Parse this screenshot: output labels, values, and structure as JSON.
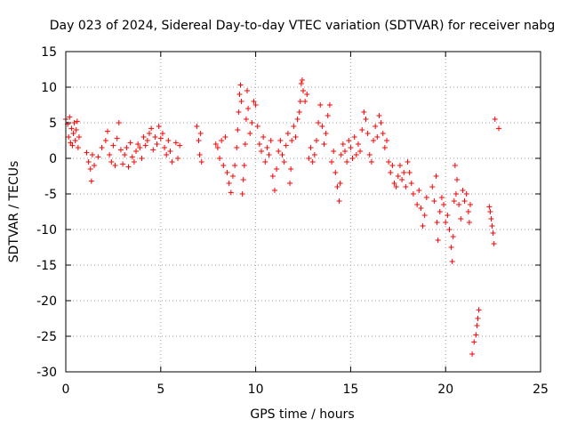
{
  "chart_data": {
    "type": "scatter",
    "title": "Day 023 of 2024, Sidereal Day-to-day VTEC variation (SDTVAR) for receiver nabg",
    "xlabel": "GPS time / hours",
    "ylabel": "SDTVAR / TECUs",
    "xlim": [
      0,
      25
    ],
    "ylim": [
      -30,
      15
    ],
    "xticks": [
      0,
      5,
      10,
      15,
      20,
      25
    ],
    "yticks": [
      15,
      10,
      5,
      0,
      -5,
      -10,
      -15,
      -20,
      -25,
      -30
    ],
    "xtick_labels": [
      "0",
      "5",
      "10",
      "15",
      "20",
      "25"
    ],
    "ytick_labels": [
      "15",
      "10",
      "5",
      "0",
      "-5",
      "-10",
      "-15",
      "-20",
      "-25",
      "-30"
    ],
    "grid": true,
    "marker": "plus",
    "color": "#ff0000",
    "series": [
      {
        "name": "SDTVAR",
        "points": [
          [
            0.0,
            5.5
          ],
          [
            0.1,
            4.8
          ],
          [
            0.15,
            3.0
          ],
          [
            0.2,
            5.8
          ],
          [
            0.25,
            2.2
          ],
          [
            0.3,
            4.2
          ],
          [
            0.35,
            1.8
          ],
          [
            0.4,
            3.5
          ],
          [
            0.45,
            5.0
          ],
          [
            0.5,
            2.5
          ],
          [
            0.55,
            4.0
          ],
          [
            0.6,
            5.2
          ],
          [
            0.65,
            1.5
          ],
          [
            0.7,
            3.0
          ],
          [
            1.1,
            0.8
          ],
          [
            1.2,
            -0.5
          ],
          [
            1.3,
            -1.5
          ],
          [
            1.35,
            -3.2
          ],
          [
            1.4,
            0.5
          ],
          [
            1.5,
            -1.0
          ],
          [
            1.7,
            0.2
          ],
          [
            1.9,
            1.5
          ],
          [
            2.1,
            2.5
          ],
          [
            2.2,
            3.8
          ],
          [
            2.3,
            0.5
          ],
          [
            2.4,
            -0.5
          ],
          [
            2.5,
            1.8
          ],
          [
            2.6,
            -1.0
          ],
          [
            2.7,
            2.8
          ],
          [
            2.8,
            5.0
          ],
          [
            2.9,
            1.2
          ],
          [
            3.0,
            -0.8
          ],
          [
            3.1,
            0.5
          ],
          [
            3.2,
            1.5
          ],
          [
            3.3,
            -1.2
          ],
          [
            3.4,
            2.2
          ],
          [
            3.5,
            0.2
          ],
          [
            3.6,
            -0.5
          ],
          [
            3.7,
            1.0
          ],
          [
            3.8,
            2.0
          ],
          [
            3.9,
            1.5
          ],
          [
            4.0,
            0.0
          ],
          [
            4.1,
            3.0
          ],
          [
            4.2,
            1.8
          ],
          [
            4.3,
            2.5
          ],
          [
            4.4,
            3.5
          ],
          [
            4.5,
            4.2
          ],
          [
            4.6,
            1.2
          ],
          [
            4.7,
            3.0
          ],
          [
            4.8,
            2.0
          ],
          [
            4.9,
            4.5
          ],
          [
            5.0,
            2.8
          ],
          [
            5.1,
            3.5
          ],
          [
            5.2,
            1.5
          ],
          [
            5.3,
            0.5
          ],
          [
            5.4,
            2.5
          ],
          [
            5.5,
            1.0
          ],
          [
            5.6,
            -0.5
          ],
          [
            5.8,
            2.2
          ],
          [
            5.9,
            0.0
          ],
          [
            6.0,
            1.8
          ],
          [
            6.9,
            4.5
          ],
          [
            7.0,
            2.5
          ],
          [
            7.05,
            0.5
          ],
          [
            7.1,
            3.5
          ],
          [
            7.15,
            -0.5
          ],
          [
            7.9,
            2.0
          ],
          [
            8.0,
            1.5
          ],
          [
            8.1,
            0.0
          ],
          [
            8.2,
            2.5
          ],
          [
            8.3,
            -1.0
          ],
          [
            8.4,
            3.0
          ],
          [
            8.5,
            -2.0
          ],
          [
            8.6,
            -3.5
          ],
          [
            8.7,
            -4.8
          ],
          [
            8.8,
            -2.5
          ],
          [
            8.9,
            -1.0
          ],
          [
            9.0,
            1.5
          ],
          [
            9.05,
            4.0
          ],
          [
            9.1,
            6.5
          ],
          [
            9.15,
            9.0
          ],
          [
            9.2,
            10.3
          ],
          [
            9.25,
            8.0
          ],
          [
            9.3,
            -5.0
          ],
          [
            9.35,
            -3.0
          ],
          [
            9.4,
            -1.0
          ],
          [
            9.45,
            2.0
          ],
          [
            9.5,
            5.5
          ],
          [
            9.55,
            9.5
          ],
          [
            9.6,
            7.0
          ],
          [
            9.7,
            3.5
          ],
          [
            9.8,
            5.0
          ],
          [
            9.9,
            8.0
          ],
          [
            10.0,
            7.5
          ],
          [
            10.1,
            4.5
          ],
          [
            10.2,
            2.0
          ],
          [
            10.3,
            1.0
          ],
          [
            10.4,
            3.0
          ],
          [
            10.5,
            -0.5
          ],
          [
            10.6,
            1.5
          ],
          [
            10.7,
            0.5
          ],
          [
            10.8,
            2.5
          ],
          [
            10.9,
            -2.5
          ],
          [
            11.0,
            -4.5
          ],
          [
            11.1,
            -1.5
          ],
          [
            11.2,
            1.0
          ],
          [
            11.3,
            2.5
          ],
          [
            11.4,
            0.5
          ],
          [
            11.5,
            -0.5
          ],
          [
            11.6,
            1.8
          ],
          [
            11.7,
            3.5
          ],
          [
            11.8,
            -3.5
          ],
          [
            11.85,
            -1.5
          ],
          [
            11.9,
            2.5
          ],
          [
            12.0,
            4.5
          ],
          [
            12.1,
            3.0
          ],
          [
            12.2,
            5.5
          ],
          [
            12.3,
            6.5
          ],
          [
            12.35,
            8.0
          ],
          [
            12.4,
            10.5
          ],
          [
            12.45,
            11.0
          ],
          [
            12.5,
            9.5
          ],
          [
            12.6,
            8.0
          ],
          [
            12.7,
            9.0
          ],
          [
            12.8,
            0.0
          ],
          [
            12.9,
            1.5
          ],
          [
            13.0,
            -0.5
          ],
          [
            13.1,
            0.5
          ],
          [
            13.2,
            2.5
          ],
          [
            13.3,
            5.0
          ],
          [
            13.4,
            7.5
          ],
          [
            13.5,
            4.5
          ],
          [
            13.6,
            2.0
          ],
          [
            13.7,
            3.5
          ],
          [
            13.8,
            6.0
          ],
          [
            13.9,
            7.5
          ],
          [
            14.0,
            -0.5
          ],
          [
            14.1,
            1.0
          ],
          [
            14.2,
            -2.0
          ],
          [
            14.3,
            -4.0
          ],
          [
            14.4,
            -6.0
          ],
          [
            14.45,
            -3.5
          ],
          [
            14.5,
            0.5
          ],
          [
            14.6,
            2.0
          ],
          [
            14.7,
            1.0
          ],
          [
            14.8,
            -0.5
          ],
          [
            14.9,
            2.5
          ],
          [
            15.0,
            1.5
          ],
          [
            15.1,
            0.0
          ],
          [
            15.2,
            3.0
          ],
          [
            15.3,
            0.5
          ],
          [
            15.4,
            2.0
          ],
          [
            15.5,
            1.0
          ],
          [
            15.6,
            4.0
          ],
          [
            15.7,
            6.5
          ],
          [
            15.8,
            5.5
          ],
          [
            15.9,
            3.5
          ],
          [
            16.0,
            0.5
          ],
          [
            16.1,
            -0.5
          ],
          [
            16.2,
            2.5
          ],
          [
            16.3,
            4.5
          ],
          [
            16.4,
            3.0
          ],
          [
            16.5,
            6.0
          ],
          [
            16.6,
            5.0
          ],
          [
            16.7,
            3.5
          ],
          [
            16.8,
            1.5
          ],
          [
            16.9,
            2.5
          ],
          [
            17.0,
            -0.5
          ],
          [
            17.1,
            -2.0
          ],
          [
            17.2,
            -1.0
          ],
          [
            17.3,
            -3.5
          ],
          [
            17.4,
            -4.0
          ],
          [
            17.5,
            -2.5
          ],
          [
            17.6,
            -1.0
          ],
          [
            17.7,
            -3.0
          ],
          [
            17.8,
            -2.0
          ],
          [
            17.9,
            -4.0
          ],
          [
            18.0,
            -0.5
          ],
          [
            18.1,
            -2.0
          ],
          [
            18.2,
            -3.5
          ],
          [
            18.3,
            -5.0
          ],
          [
            18.5,
            -6.5
          ],
          [
            18.6,
            -4.5
          ],
          [
            18.7,
            -7.0
          ],
          [
            18.8,
            -9.5
          ],
          [
            18.9,
            -8.0
          ],
          [
            19.0,
            -5.5
          ],
          [
            19.3,
            -4.0
          ],
          [
            19.4,
            -6.0
          ],
          [
            19.5,
            -2.5
          ],
          [
            19.55,
            -9.0
          ],
          [
            19.6,
            -11.5
          ],
          [
            19.7,
            -7.5
          ],
          [
            19.8,
            -5.5
          ],
          [
            19.9,
            -6.5
          ],
          [
            20.0,
            -9.0
          ],
          [
            20.1,
            -8.0
          ],
          [
            20.2,
            -10.0
          ],
          [
            20.3,
            -12.5
          ],
          [
            20.35,
            -14.5
          ],
          [
            20.4,
            -11.0
          ],
          [
            20.45,
            -6.0
          ],
          [
            20.5,
            -1.0
          ],
          [
            20.55,
            -5.0
          ],
          [
            20.6,
            -3.0
          ],
          [
            20.7,
            -6.5
          ],
          [
            20.8,
            -8.5
          ],
          [
            20.9,
            -4.5
          ],
          [
            21.0,
            -6.0
          ],
          [
            21.1,
            -5.0
          ],
          [
            21.2,
            -7.5
          ],
          [
            21.25,
            -9.0
          ],
          [
            21.3,
            -6.5
          ],
          [
            21.4,
            -27.5
          ],
          [
            21.5,
            -25.8
          ],
          [
            21.6,
            -24.8
          ],
          [
            21.65,
            -23.5
          ],
          [
            21.7,
            -22.5
          ],
          [
            21.75,
            -21.3
          ],
          [
            22.3,
            -6.8
          ],
          [
            22.35,
            -7.5
          ],
          [
            22.4,
            -8.5
          ],
          [
            22.45,
            -9.5
          ],
          [
            22.5,
            -10.5
          ],
          [
            22.55,
            -12.0
          ],
          [
            22.6,
            5.5
          ],
          [
            22.8,
            4.2
          ]
        ]
      }
    ]
  }
}
